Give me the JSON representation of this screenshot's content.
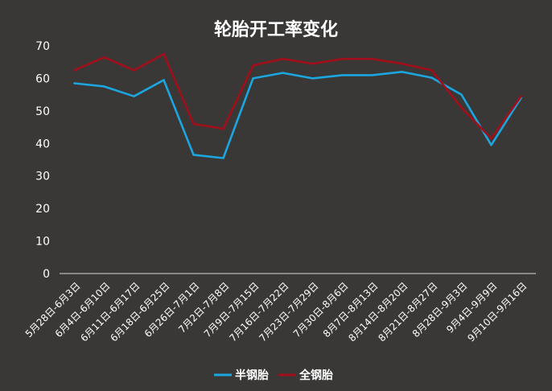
{
  "chart_data": {
    "type": "line",
    "title": "轮胎开工率变化",
    "xlabel": "",
    "ylabel": "",
    "ylim": [
      0,
      70
    ],
    "yticks": [
      0,
      10,
      20,
      30,
      40,
      50,
      60,
      70
    ],
    "grid": false,
    "legend_position": "bottom",
    "categories": [
      "5月28日-6月3日",
      "6月4日-6月10日",
      "6月11日-6月17日",
      "6月18日-6月25日",
      "6月26日-7月1日",
      "7月2日-7月8日",
      "7月9日-7月15日",
      "7月16日-7月22日",
      "7月23日-7月29日",
      "7月30日-8月6日",
      "8月7日-8月13日",
      "8月14日-8月20日",
      "8月21日-8月27日",
      "8月28日-9月3日",
      "9月4日-9月9日",
      "9月10日-9月16日"
    ],
    "series": [
      {
        "name": "半钢胎",
        "color": "#1ba6e0",
        "values": [
          58.5,
          57.5,
          54.5,
          59.5,
          36.5,
          35.5,
          60,
          61.7,
          60,
          61,
          61,
          62,
          60.2,
          55,
          39.5,
          54
        ]
      },
      {
        "name": "全钢胎",
        "color": "#a00f1a",
        "values": [
          62.5,
          66.5,
          62.5,
          67.5,
          46,
          44.5,
          64,
          66,
          64.5,
          66,
          66,
          64.5,
          62.5,
          51,
          41.5,
          54.5
        ]
      }
    ]
  }
}
